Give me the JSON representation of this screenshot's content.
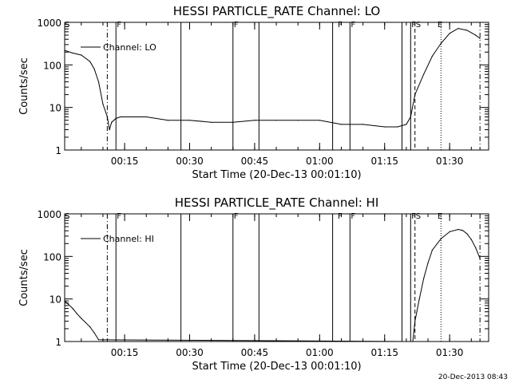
{
  "chart_data": [
    {
      "type": "line",
      "title": "HESSI PARTICLE_RATE Channel: LO",
      "xlabel": "Start Time (20-Dec-13 00:01:10)",
      "ylabel": "Counts/sec",
      "y_scale": "log",
      "ylim": [
        1,
        1000
      ],
      "y_ticks": [
        "1",
        "10",
        "100",
        "1000"
      ],
      "xlim": [
        "00:01:10",
        "01:39:00"
      ],
      "x_ticks": [
        "00:15",
        "00:30",
        "00:45",
        "01:00",
        "01:15",
        "01:30"
      ],
      "legend": {
        "position": "top-left",
        "entries": [
          "Channel: LO"
        ]
      },
      "grid": false,
      "flags": [
        {
          "label": "S",
          "time": "00:01"
        },
        {
          "label": "F",
          "time": "00:13"
        },
        {
          "label": "F",
          "time": "00:40"
        },
        {
          "label": "F",
          "time": "01:04"
        },
        {
          "label": "F",
          "time": "01:07"
        },
        {
          "label": "F",
          "time": "01:21"
        },
        {
          "label": "S",
          "time": "01:22"
        },
        {
          "label": "E",
          "time": "01:27"
        }
      ],
      "solid_lines": [
        "00:13",
        "00:28",
        "00:40",
        "00:46",
        "01:03",
        "01:07",
        "01:19",
        "01:21"
      ],
      "dashdot_lines": [
        "00:11",
        "01:37"
      ],
      "dashed_lines": [
        "01:22"
      ],
      "dotted_lines": [
        "01:28"
      ],
      "series": [
        {
          "name": "Channel: LO",
          "x": [
            "00:01:10",
            "00:03",
            "00:05",
            "00:07",
            "00:08",
            "00:09",
            "00:10",
            "00:11",
            "00:11:30",
            "00:12",
            "00:13",
            "00:14",
            "00:20",
            "00:25",
            "00:30",
            "00:35",
            "00:40",
            "00:45",
            "00:50",
            "00:55",
            "01:00",
            "01:05",
            "01:10",
            "01:15",
            "01:18",
            "01:20",
            "01:21",
            "01:22",
            "01:24",
            "01:26",
            "01:28",
            "01:30",
            "01:32",
            "01:34",
            "01:36",
            "01:37"
          ],
          "values": [
            220,
            190,
            170,
            120,
            80,
            40,
            12,
            6,
            3,
            4.5,
            5.5,
            6,
            6,
            5,
            5,
            4.5,
            4.5,
            5,
            5,
            5,
            5,
            4,
            4,
            3.5,
            3.5,
            4,
            6,
            20,
            60,
            160,
            320,
            550,
            720,
            650,
            500,
            420
          ]
        }
      ]
    },
    {
      "type": "line",
      "title": "HESSI PARTICLE_RATE Channel: HI",
      "xlabel": "Start Time (20-Dec-13 00:01:10)",
      "ylabel": "Counts/sec",
      "y_scale": "log",
      "ylim": [
        1,
        1000
      ],
      "y_ticks": [
        "1",
        "10",
        "100",
        "1000"
      ],
      "xlim": [
        "00:01:10",
        "01:39:00"
      ],
      "x_ticks": [
        "00:15",
        "00:30",
        "00:45",
        "01:00",
        "01:15",
        "01:30"
      ],
      "legend": {
        "position": "top-left",
        "entries": [
          "Channel: HI"
        ]
      },
      "grid": false,
      "flags": [
        {
          "label": "S",
          "time": "00:01"
        },
        {
          "label": "F",
          "time": "00:13"
        },
        {
          "label": "F",
          "time": "00:40"
        },
        {
          "label": "F",
          "time": "01:04"
        },
        {
          "label": "F",
          "time": "01:07"
        },
        {
          "label": "F",
          "time": "01:21"
        },
        {
          "label": "S",
          "time": "01:22"
        },
        {
          "label": "E",
          "time": "01:27"
        }
      ],
      "solid_lines": [
        "00:13",
        "00:28",
        "00:40",
        "00:46",
        "01:03",
        "01:07",
        "01:19",
        "01:21"
      ],
      "dashdot_lines": [
        "00:11",
        "01:37"
      ],
      "dashed_lines": [
        "01:22"
      ],
      "dotted_lines": [
        "01:28"
      ],
      "series": [
        {
          "name": "Channel: HI",
          "x": [
            "00:01:10",
            "00:02",
            "00:03",
            "00:04",
            "00:05",
            "00:06",
            "00:07",
            "00:08",
            "00:09",
            "01:21:30",
            "01:22",
            "01:23",
            "01:24",
            "01:25",
            "01:26",
            "01:28",
            "01:30",
            "01:32",
            "01:33",
            "01:34",
            "01:35",
            "01:36",
            "01:37"
          ],
          "values": [
            9,
            7.5,
            6,
            4.5,
            3.5,
            2.8,
            2.2,
            1.6,
            1.1,
            1,
            3,
            10,
            30,
            70,
            140,
            260,
            380,
            430,
            410,
            340,
            250,
            160,
            90
          ]
        }
      ]
    }
  ],
  "footer": {
    "timestamp": "20-Dec-2013 08:43"
  }
}
